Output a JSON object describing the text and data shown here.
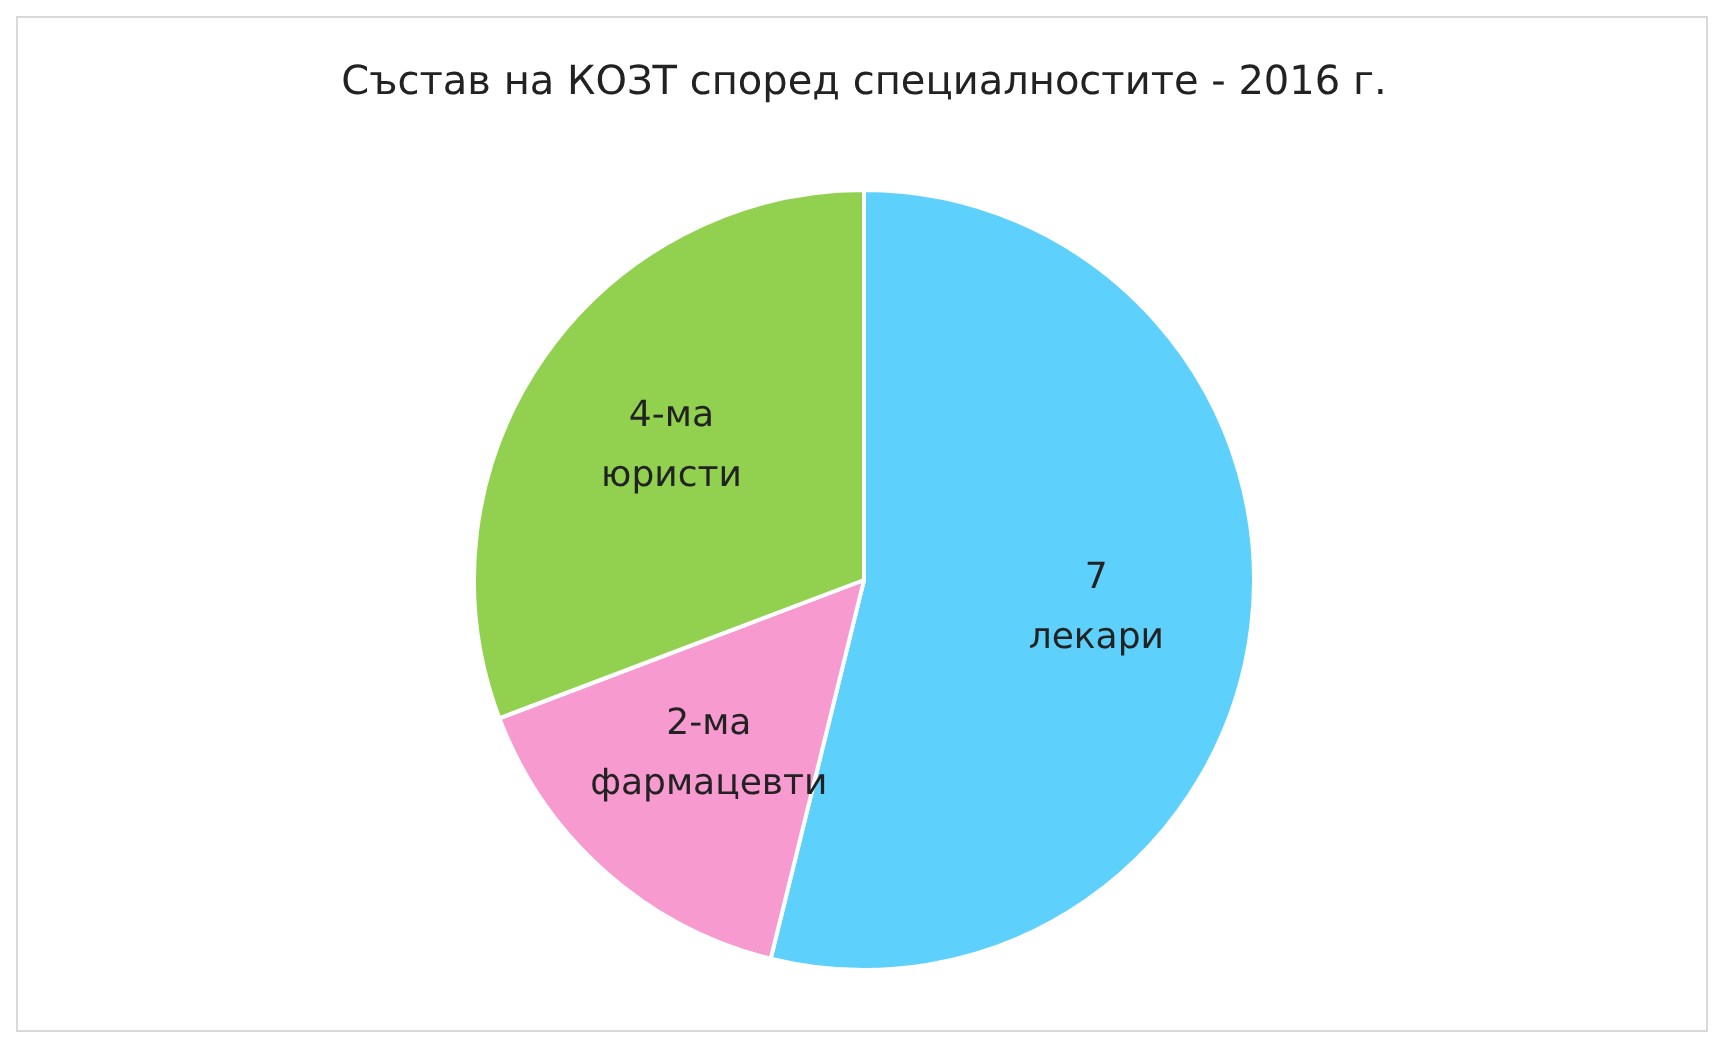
{
  "chart_data": {
    "type": "pie",
    "title": "Състав на КОЗТ според специалностите - 2016 г.",
    "categories": [
      "лекари",
      "фармацевти",
      "юристи"
    ],
    "values": [
      7,
      2,
      4
    ],
    "value_labels": [
      "7",
      "2-ма",
      "4-ма"
    ],
    "colors": [
      "#5dd0fb",
      "#f79ad0",
      "#92d050"
    ],
    "legend": false
  }
}
